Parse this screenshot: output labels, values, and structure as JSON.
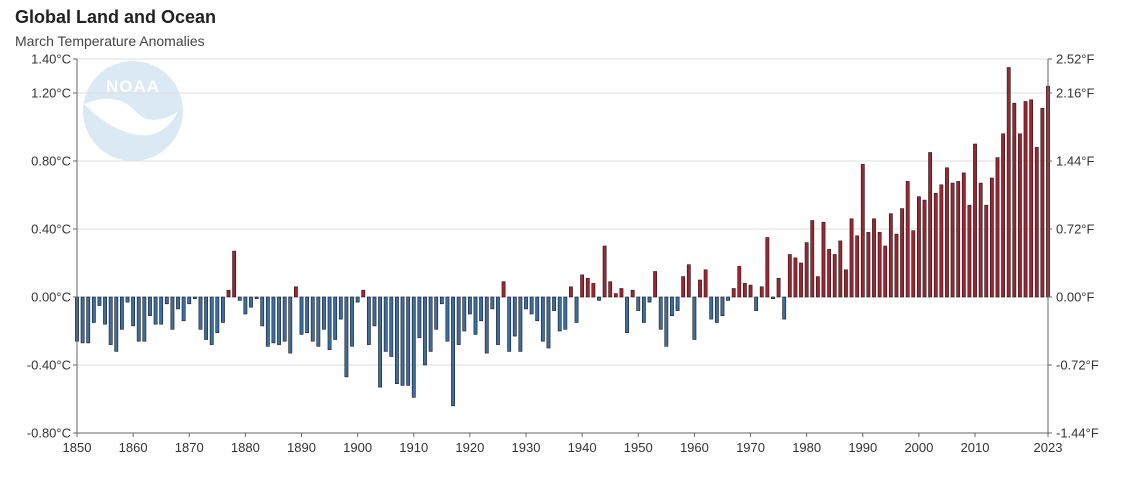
{
  "header": {
    "title": "Global Land and Ocean",
    "subtitle": "March Temperature Anomalies"
  },
  "logo": {
    "text": "NOAA"
  },
  "colors": {
    "positive": "#a3232f",
    "negative": "#3a6ea5",
    "grid": "#dddddd",
    "logo": "#dbe9f5"
  },
  "chart_data": {
    "type": "bar",
    "title": "Global Land and Ocean",
    "subtitle": "March Temperature Anomalies",
    "xlabel": "",
    "ylabel": "",
    "ylim": [
      -0.8,
      1.4
    ],
    "xlim": [
      1850,
      2023
    ],
    "grid": true,
    "y_ticks_left": [
      "1.40°C",
      "1.20°C",
      "0.80°C",
      "0.40°C",
      "0.00°C",
      "-0.40°C",
      "-0.80°C"
    ],
    "y_ticks_left_values": [
      1.4,
      1.2,
      0.8,
      0.4,
      0.0,
      -0.4,
      -0.8
    ],
    "y_ticks_right": [
      "2.52°F",
      "2.16°F",
      "1.44°F",
      "0.72°F",
      "0.00°F",
      "-0.72°F",
      "-1.44°F"
    ],
    "x_ticks": [
      "1850",
      "1860",
      "1870",
      "1880",
      "1890",
      "1900",
      "1910",
      "1920",
      "1930",
      "1940",
      "1950",
      "1960",
      "1970",
      "1980",
      "1990",
      "2000",
      "2010",
      "2023"
    ],
    "x_tick_values": [
      1850,
      1860,
      1870,
      1880,
      1890,
      1900,
      1910,
      1920,
      1930,
      1940,
      1950,
      1960,
      1970,
      1980,
      1990,
      2000,
      2010,
      2023
    ],
    "start_year": 1850,
    "values": [
      -0.26,
      -0.27,
      -0.27,
      -0.15,
      -0.05,
      -0.16,
      -0.28,
      -0.32,
      -0.19,
      -0.03,
      -0.17,
      -0.26,
      -0.26,
      -0.11,
      -0.16,
      -0.16,
      -0.04,
      -0.19,
      -0.07,
      -0.14,
      -0.04,
      -0.01,
      -0.19,
      -0.25,
      -0.28,
      -0.21,
      -0.15,
      0.04,
      0.27,
      -0.02,
      -0.1,
      -0.06,
      -0.01,
      -0.17,
      -0.29,
      -0.27,
      -0.28,
      -0.26,
      -0.33,
      0.06,
      -0.22,
      -0.21,
      -0.26,
      -0.29,
      -0.19,
      -0.31,
      -0.25,
      -0.13,
      -0.47,
      -0.29,
      -0.03,
      0.04,
      -0.28,
      -0.17,
      -0.53,
      -0.32,
      -0.35,
      -0.51,
      -0.52,
      -0.52,
      -0.59,
      -0.24,
      -0.4,
      -0.32,
      -0.19,
      -0.04,
      -0.26,
      -0.64,
      -0.28,
      -0.2,
      -0.1,
      -0.22,
      -0.14,
      -0.33,
      -0.07,
      -0.28,
      0.09,
      -0.32,
      -0.23,
      -0.32,
      -0.07,
      -0.1,
      -0.14,
      -0.26,
      -0.3,
      -0.08,
      -0.2,
      -0.19,
      0.06,
      -0.15,
      0.13,
      0.11,
      0.08,
      -0.02,
      0.3,
      0.09,
      0.02,
      0.05,
      -0.21,
      0.04,
      -0.08,
      -0.15,
      -0.03,
      0.15,
      -0.19,
      -0.29,
      -0.11,
      -0.08,
      0.12,
      0.19,
      -0.25,
      0.1,
      0.16,
      -0.13,
      -0.15,
      -0.11,
      -0.02,
      0.05,
      0.18,
      0.08,
      0.07,
      -0.08,
      0.06,
      0.35,
      -0.01,
      0.11,
      -0.13,
      0.25,
      0.23,
      0.2,
      0.32,
      0.45,
      0.12,
      0.44,
      0.28,
      0.25,
      0.33,
      0.16,
      0.46,
      0.36,
      0.78,
      0.38,
      0.46,
      0.38,
      0.3,
      0.49,
      0.37,
      0.52,
      0.68,
      0.39,
      0.59,
      0.57,
      0.85,
      0.61,
      0.66,
      0.76,
      0.67,
      0.68,
      0.73,
      0.54,
      0.9,
      0.67,
      0.54,
      0.7,
      0.82,
      0.96,
      1.35,
      1.14,
      0.96,
      1.15,
      1.16,
      0.88,
      1.11,
      1.24
    ]
  }
}
